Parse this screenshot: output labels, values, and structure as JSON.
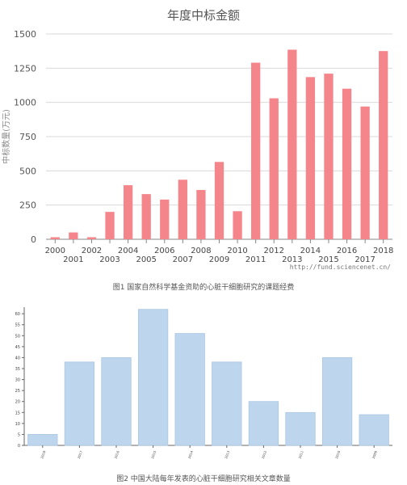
{
  "chart_data": [
    {
      "type": "bar",
      "title": "年度中标金额",
      "ylabel": "中标数量(万元)",
      "xlabel": "",
      "categories": [
        "2000",
        "2001",
        "2002",
        "2003",
        "2004",
        "2005",
        "2006",
        "2007",
        "2008",
        "2009",
        "2010",
        "2011",
        "2012",
        "2013",
        "2014",
        "2015",
        "2016",
        "2017",
        "2018"
      ],
      "values": [
        15,
        50,
        15,
        200,
        395,
        330,
        290,
        435,
        360,
        565,
        205,
        1290,
        1030,
        1385,
        1185,
        1210,
        1100,
        970,
        1375
      ],
      "ylim": [
        0,
        1500
      ],
      "yticks": [
        0,
        250,
        500,
        750,
        1000,
        1250,
        1500
      ],
      "grid": true,
      "bar_color": "#f4868b",
      "watermark": "http://fund.sciencenet.cn/"
    },
    {
      "type": "bar",
      "title": "",
      "xlabel": "",
      "ylabel": "",
      "categories": [
        "2018",
        "2017",
        "2016",
        "2015",
        "2014",
        "2013",
        "2012",
        "2011",
        "2010",
        "2009"
      ],
      "values": [
        5,
        38,
        40,
        62,
        51,
        38,
        20,
        15,
        40,
        14
      ],
      "ylim": [
        0,
        63
      ],
      "yticks": [
        0,
        5,
        10,
        15,
        20,
        25,
        30,
        35,
        40,
        45,
        50,
        55,
        60
      ],
      "grid": false,
      "bar_color": "#bdd6ee",
      "bar_edge_color": "#aac7e3"
    }
  ],
  "captions": {
    "fig1": "图1 国家自然科学基金资助的心脏干细胞研究的课题经费",
    "fig2": "图2 中国大陆每年发表的心脏干细胞研究相关文章数量"
  }
}
